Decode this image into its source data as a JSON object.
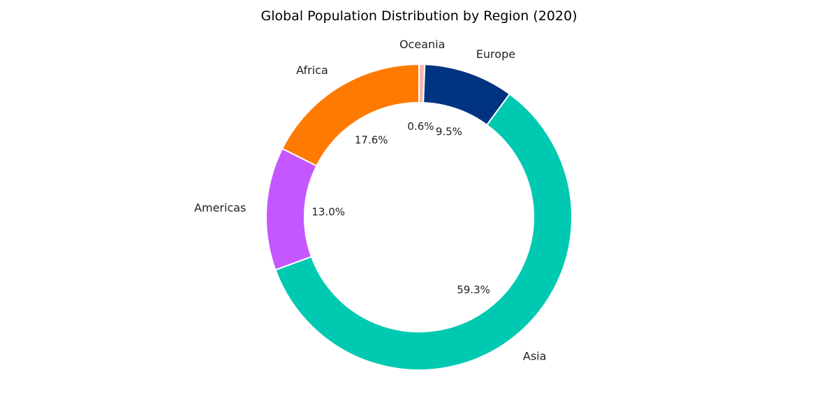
{
  "chart_data": {
    "type": "pie",
    "variant": "donut",
    "title": "Global Population Distribution by Region (2020)",
    "start_angle_deg": 90,
    "direction": "clockwise",
    "slices": [
      {
        "label": "Oceania",
        "value": 0.6,
        "pct_label": "0.6%",
        "color": "#f4b6b6"
      },
      {
        "label": "Europe",
        "value": 9.5,
        "pct_label": "9.5%",
        "color": "#003380"
      },
      {
        "label": "Asia",
        "value": 59.3,
        "pct_label": "59.3%",
        "color": "#00c9b2"
      },
      {
        "label": "Americas",
        "value": 13.0,
        "pct_label": "13.0%",
        "color": "#c457ff"
      },
      {
        "label": "Africa",
        "value": 17.6,
        "pct_label": "17.6%",
        "color": "#ff7a00"
      }
    ]
  }
}
